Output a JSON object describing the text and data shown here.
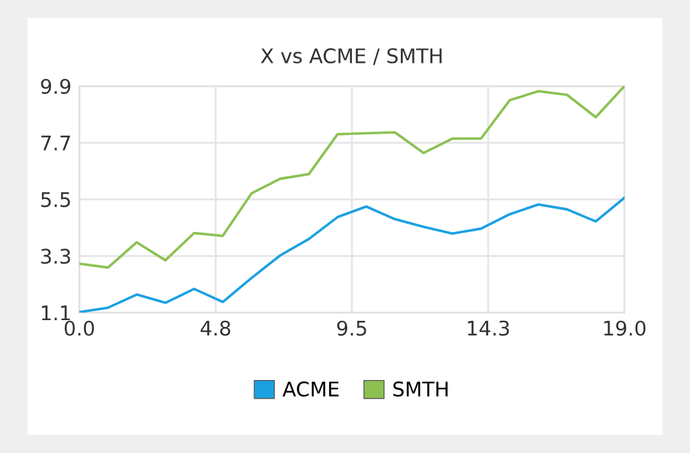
{
  "chart_data": {
    "type": "line",
    "title": "X vs ACME / SMTH",
    "x": [
      0,
      1,
      2,
      3,
      4,
      5,
      6,
      7,
      8,
      9,
      10,
      11,
      12,
      13,
      14,
      15,
      16,
      17,
      18,
      19
    ],
    "series": [
      {
        "name": "ACME",
        "color": "#1ba1e2",
        "values": [
          1.12,
          1.29,
          1.8,
          1.48,
          2.02,
          1.51,
          2.44,
          3.32,
          3.96,
          4.81,
          5.22,
          4.73,
          4.43,
          4.17,
          4.36,
          4.92,
          5.3,
          5.11,
          4.64,
          5.56
        ]
      },
      {
        "name": "SMTH",
        "color": "#8cc152",
        "values": [
          3.0,
          2.85,
          3.83,
          3.13,
          4.19,
          4.08,
          5.73,
          6.3,
          6.48,
          8.03,
          8.07,
          8.1,
          7.3,
          7.86,
          7.86,
          9.35,
          9.7,
          9.56,
          8.69,
          9.9
        ]
      }
    ],
    "xlim": [
      0,
      19
    ],
    "xticks": [
      {
        "value": 0,
        "label": "0.0"
      },
      {
        "value": 4.75,
        "label": "4.8"
      },
      {
        "value": 9.5,
        "label": "9.5"
      },
      {
        "value": 14.25,
        "label": "14.3"
      },
      {
        "value": 19,
        "label": "19.0"
      }
    ],
    "ylim": [
      1.1,
      9.9
    ],
    "yticks": [
      1.1,
      3.3,
      5.5,
      7.7,
      9.9
    ],
    "grid": true,
    "legend": "bottom",
    "marker": "none",
    "line_style": "solid"
  }
}
